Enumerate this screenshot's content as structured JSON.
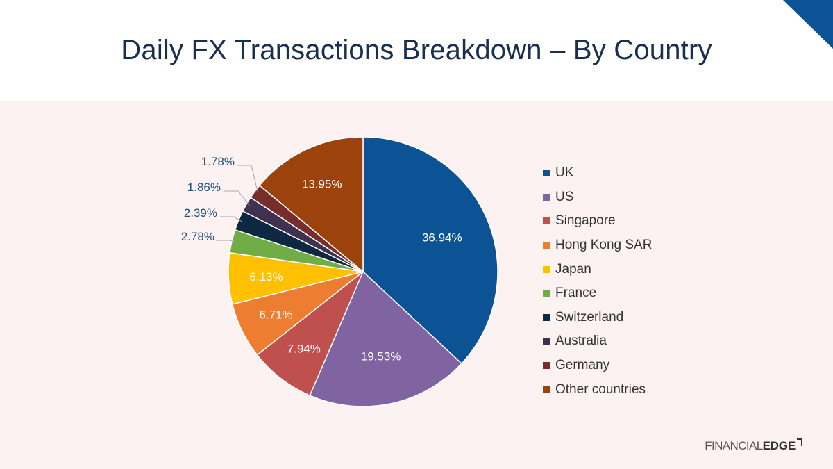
{
  "title": "Daily FX Transactions Breakdown – By Country",
  "brand": {
    "name_light": "FINANCIAL",
    "name_bold": "EDGE"
  },
  "colors": {
    "title": "#1a2e4f",
    "panel_background": "#fdf2f2",
    "corner_accent": "#0b5394"
  },
  "chart_data": {
    "type": "pie",
    "title": "Daily FX Transactions Breakdown – By Country",
    "legend_position": "right",
    "start_angle_deg": 0,
    "direction": "clockwise",
    "slices": [
      {
        "label": "UK",
        "value": 36.94,
        "display": "36.94%",
        "color": "#0b5394",
        "label_placement": "inside",
        "label_color": "#ffffff"
      },
      {
        "label": "US",
        "value": 19.53,
        "display": "19.53%",
        "color": "#8064a2",
        "label_placement": "inside",
        "label_color": "#ffffff"
      },
      {
        "label": "Singapore",
        "value": 7.94,
        "display": "7.94%",
        "color": "#c0504d",
        "label_placement": "inside",
        "label_color": "#ffffff"
      },
      {
        "label": "Hong Kong SAR",
        "value": 6.71,
        "display": "6.71%",
        "color": "#ed7d31",
        "label_placement": "inside",
        "label_color": "#ffffff"
      },
      {
        "label": "Japan",
        "value": 6.13,
        "display": "6.13%",
        "color": "#ffc000",
        "label_placement": "inside",
        "label_color": "#ffffff"
      },
      {
        "label": "France",
        "value": 2.78,
        "display": "2.78%",
        "color": "#70ad47",
        "label_placement": "outside",
        "label_color": "#1f4e79"
      },
      {
        "label": "Switzerland",
        "value": 2.39,
        "display": "2.39%",
        "color": "#0e2841",
        "label_placement": "outside",
        "label_color": "#1f4e79"
      },
      {
        "label": "Australia",
        "value": 1.86,
        "display": "1.86%",
        "color": "#403151",
        "label_placement": "outside",
        "label_color": "#1f4e79"
      },
      {
        "label": "Germany",
        "value": 1.78,
        "display": "1.78%",
        "color": "#782d2d",
        "label_placement": "outside",
        "label_color": "#1f4e79"
      },
      {
        "label": "Other countries",
        "value": 13.95,
        "display": "13.95%",
        "color": "#9c420c",
        "label_placement": "inside",
        "label_color": "#ffffff"
      }
    ]
  }
}
